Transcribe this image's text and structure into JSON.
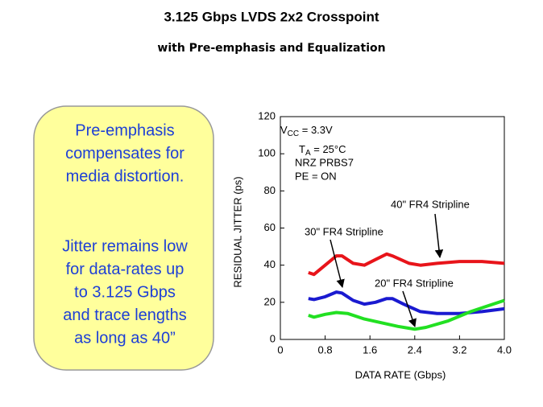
{
  "title": "3.125 Gbps LVDS 2x2 Crosspoint",
  "subtitle": "with Pre-emphasis and Equalization",
  "callout": {
    "paragraph1": [
      "Pre-emphasis",
      "compensates for",
      "media distortion."
    ],
    "paragraph2": [
      "Jitter remains low",
      "for data-rates up",
      "to 3.125 Gbps",
      "and trace lengths",
      "as long as 40”"
    ]
  },
  "chart_data": {
    "type": "line",
    "xlabel": "DATA RATE (Gbps)",
    "ylabel": "RESIDUAL JITTER (ps)",
    "xlim": [
      0,
      4
    ],
    "xticks": [
      0,
      0.8,
      1.6,
      2.4,
      3.2,
      {
        "value": 4,
        "label": "4.0"
      }
    ],
    "ylim": [
      0,
      120
    ],
    "yticks": [
      0,
      20,
      40,
      60,
      80,
      100,
      120
    ],
    "conditions": [
      {
        "base": "V",
        "sub": "CC",
        "rest": " = 3.3V"
      },
      {
        "base": "T",
        "sub": "A",
        "rest": " = 25°C"
      },
      {
        "base": "NRZ PRBS7"
      },
      {
        "base": "PE = ON"
      }
    ],
    "series": [
      {
        "name": "40\" FR4 Stripline",
        "color": "#e8141a",
        "x": [
          0.5,
          0.6,
          0.8,
          1.0,
          1.1,
          1.3,
          1.5,
          1.7,
          1.9,
          2.0,
          2.3,
          2.5,
          2.8,
          3.2,
          3.6,
          4.0
        ],
        "values": [
          36,
          35,
          40,
          45,
          45,
          41,
          40,
          43,
          46,
          45,
          41,
          40,
          41,
          42,
          42,
          41
        ]
      },
      {
        "name": "30\" FR4 Stripline",
        "color": "#1a1ad0",
        "x": [
          0.5,
          0.6,
          0.8,
          1.0,
          1.1,
          1.3,
          1.5,
          1.7,
          1.9,
          2.0,
          2.2,
          2.5,
          2.8,
          3.2,
          3.6,
          4.0
        ],
        "values": [
          22,
          21.5,
          23,
          25.5,
          25,
          21,
          19,
          20,
          22,
          22,
          19,
          15,
          14,
          14,
          15,
          16.5
        ]
      },
      {
        "name": "20\" FR4 Stripline",
        "color": "#22e022",
        "x": [
          0.5,
          0.6,
          0.8,
          1.0,
          1.2,
          1.5,
          1.8,
          2.1,
          2.4,
          2.6,
          3.0,
          3.4,
          3.7,
          4.0
        ],
        "values": [
          13,
          12,
          13.5,
          14.5,
          14,
          11,
          9,
          7,
          5.5,
          6.5,
          10,
          15,
          18,
          21
        ]
      }
    ]
  }
}
